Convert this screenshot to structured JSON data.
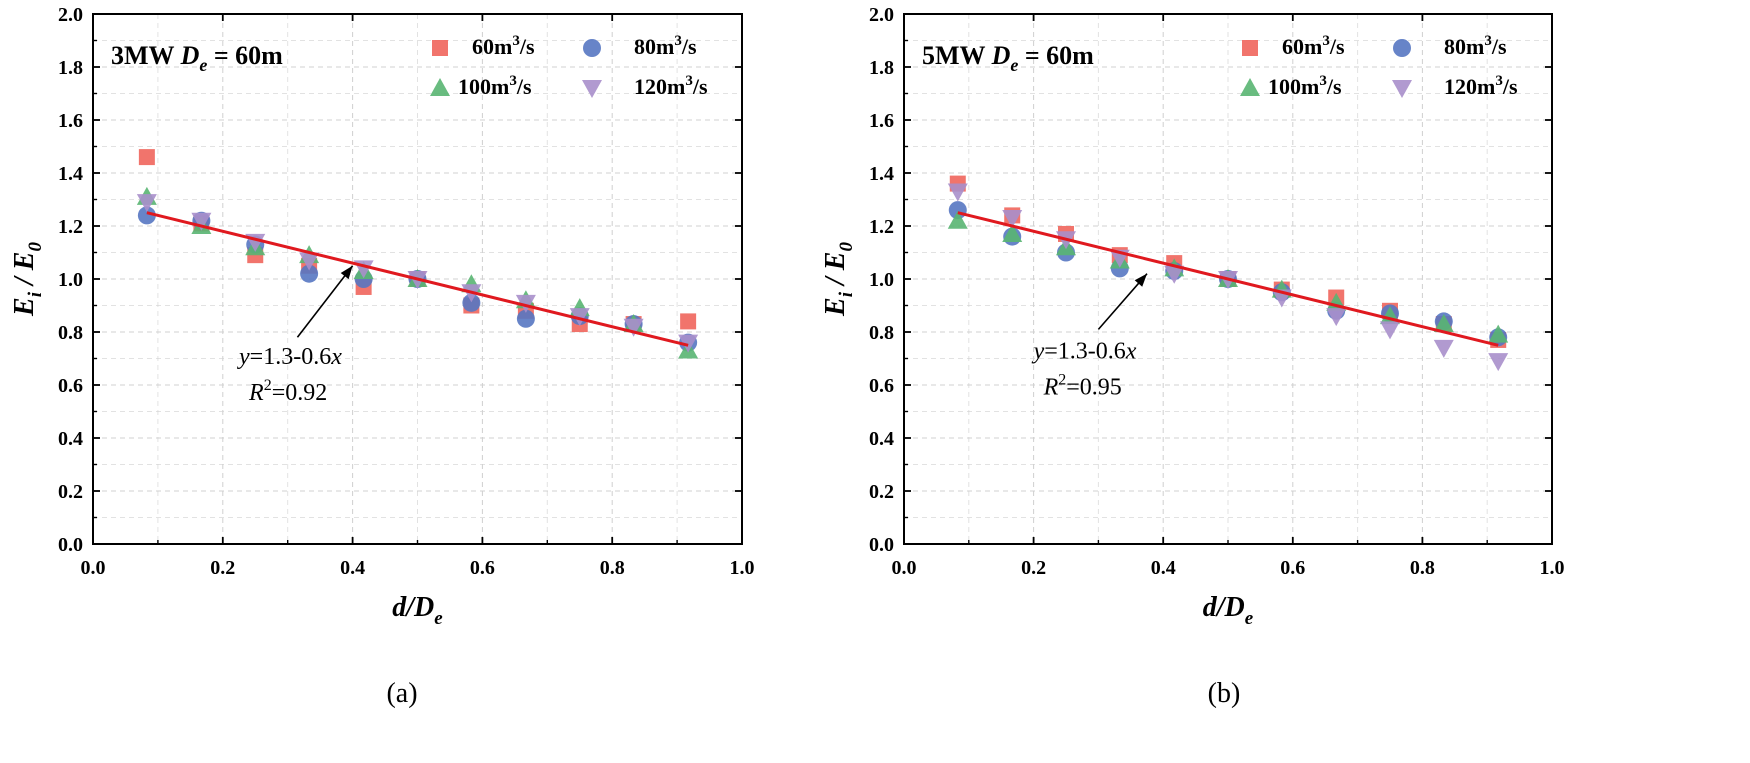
{
  "colors": {
    "60": "#f0655c",
    "80": "#5677c2",
    "100": "#59b572",
    "120": "#a88fcb",
    "fit": "#e0191f",
    "axis": "#000000"
  },
  "chart_data": [
    {
      "type": "scatter",
      "panel": "a",
      "caption": "(a)",
      "title_prefix": "3MW",
      "title_var": "D",
      "title_sub": "e",
      "title_suffix": " = 60m",
      "xlabel_main": "d/D",
      "xlabel_sub": "e",
      "ylabel_main": "E",
      "ylabel_sub1": "i",
      "ylabel_mid": " / E",
      "ylabel_sub2": "0",
      "xlim": [
        0.0,
        1.0
      ],
      "ylim": [
        0.0,
        2.0
      ],
      "xticks": [
        "0.0",
        "0.2",
        "0.4",
        "0.6",
        "0.8",
        "1.0"
      ],
      "yticks": [
        "0.0",
        "0.2",
        "0.4",
        "0.6",
        "0.8",
        "1.0",
        "1.2",
        "1.4",
        "1.6",
        "1.8",
        "2.0"
      ],
      "grid": true,
      "legend_position": "top-right",
      "legend_unit_base": "m",
      "legend_unit_exp": "3",
      "legend_unit_tail": "/s",
      "series": [
        {
          "key": "60",
          "legend_num": "60",
          "marker": "square",
          "x": [
            0.083,
            0.167,
            0.25,
            0.333,
            0.417,
            0.5,
            0.583,
            0.667,
            0.75,
            0.833,
            0.917
          ],
          "y": [
            1.46,
            1.21,
            1.09,
            1.05,
            0.97,
            1.0,
            0.9,
            0.88,
            0.83,
            0.83,
            0.84
          ]
        },
        {
          "key": "80",
          "legend_num": "80",
          "marker": "circle",
          "x": [
            0.083,
            0.167,
            0.25,
            0.333,
            0.417,
            0.5,
            0.583,
            0.667,
            0.75,
            0.833,
            0.917
          ],
          "y": [
            1.24,
            1.22,
            1.13,
            1.02,
            1.0,
            1.0,
            0.91,
            0.85,
            0.86,
            0.83,
            0.76
          ]
        },
        {
          "key": "100",
          "legend_num": "100",
          "marker": "triangle-up",
          "x": [
            0.083,
            0.167,
            0.25,
            0.333,
            0.417,
            0.5,
            0.583,
            0.667,
            0.75,
            0.833,
            0.917
          ],
          "y": [
            1.31,
            1.2,
            1.12,
            1.09,
            1.03,
            1.0,
            0.98,
            0.92,
            0.89,
            0.83,
            0.73
          ]
        },
        {
          "key": "120",
          "legend_num": "120",
          "marker": "triangle-down",
          "x": [
            0.083,
            0.167,
            0.25,
            0.333,
            0.417,
            0.5,
            0.583,
            0.667,
            0.75,
            0.833,
            0.917
          ],
          "y": [
            1.29,
            1.22,
            1.14,
            1.07,
            1.04,
            1.0,
            0.95,
            0.91,
            0.86,
            0.82,
            0.76
          ]
        }
      ],
      "fit": {
        "intercept": 1.3,
        "slope": -0.6,
        "x_range": [
          0.083,
          0.917
        ],
        "equation_y": "y",
        "equation_mid": "=1.3-0.6",
        "equation_x": "x",
        "r2_label": "R",
        "r2_exp": "2",
        "r2_value": "=0.92",
        "arrow_tip": [
          0.4,
          1.05
        ],
        "arrow_tail": [
          0.315,
          0.78
        ],
        "label_anchor": [
          0.225,
          0.68
        ]
      }
    },
    {
      "type": "scatter",
      "panel": "b",
      "caption": "(b)",
      "title_prefix": "5MW",
      "title_var": "D",
      "title_sub": "e",
      "title_suffix": " = 60m",
      "xlabel_main": "d/D",
      "xlabel_sub": "e",
      "ylabel_main": "E",
      "ylabel_sub1": "i",
      "ylabel_mid": " / E",
      "ylabel_sub2": "0",
      "xlim": [
        0.0,
        1.0
      ],
      "ylim": [
        0.0,
        2.0
      ],
      "xticks": [
        "0.0",
        "0.2",
        "0.4",
        "0.6",
        "0.8",
        "1.0"
      ],
      "yticks": [
        "0.0",
        "0.2",
        "0.4",
        "0.6",
        "0.8",
        "1.0",
        "1.2",
        "1.4",
        "1.6",
        "1.8",
        "2.0"
      ],
      "grid": true,
      "legend_position": "top-right",
      "legend_unit_base": "m",
      "legend_unit_exp": "3",
      "legend_unit_tail": "/s",
      "series": [
        {
          "key": "60",
          "legend_num": "60",
          "marker": "square",
          "x": [
            0.083,
            0.167,
            0.25,
            0.333,
            0.417,
            0.5,
            0.583,
            0.667,
            0.75,
            0.833,
            0.917
          ],
          "y": [
            1.36,
            1.24,
            1.17,
            1.09,
            1.06,
            1.0,
            0.96,
            0.93,
            0.88,
            0.83,
            0.77
          ]
        },
        {
          "key": "80",
          "legend_num": "80",
          "marker": "circle",
          "x": [
            0.083,
            0.167,
            0.25,
            0.333,
            0.417,
            0.5,
            0.583,
            0.667,
            0.75,
            0.833,
            0.917
          ],
          "y": [
            1.26,
            1.16,
            1.1,
            1.04,
            1.03,
            1.0,
            0.95,
            0.88,
            0.87,
            0.84,
            0.78
          ]
        },
        {
          "key": "100",
          "legend_num": "100",
          "marker": "triangle-up",
          "x": [
            0.083,
            0.167,
            0.25,
            0.333,
            0.417,
            0.5,
            0.583,
            0.667,
            0.75,
            0.833,
            0.917
          ],
          "y": [
            1.22,
            1.17,
            1.12,
            1.07,
            1.04,
            1.0,
            0.96,
            0.91,
            0.86,
            0.83,
            0.79
          ]
        },
        {
          "key": "120",
          "legend_num": "120",
          "marker": "triangle-down",
          "x": [
            0.083,
            0.167,
            0.25,
            0.333,
            0.417,
            0.5,
            0.583,
            0.667,
            0.75,
            0.833,
            0.917
          ],
          "y": [
            1.33,
            1.23,
            1.15,
            1.08,
            1.02,
            1.0,
            0.93,
            0.86,
            0.81,
            0.74,
            0.69
          ]
        }
      ],
      "fit": {
        "intercept": 1.3,
        "slope": -0.6,
        "x_range": [
          0.083,
          0.917
        ],
        "equation_y": "y",
        "equation_mid": "=1.3-0.6",
        "equation_x": "x",
        "r2_label": "R",
        "r2_exp": "2",
        "r2_value": "=0.95",
        "arrow_tip": [
          0.375,
          1.02
        ],
        "arrow_tail": [
          0.3,
          0.81
        ],
        "label_anchor": [
          0.2,
          0.7
        ]
      }
    }
  ]
}
